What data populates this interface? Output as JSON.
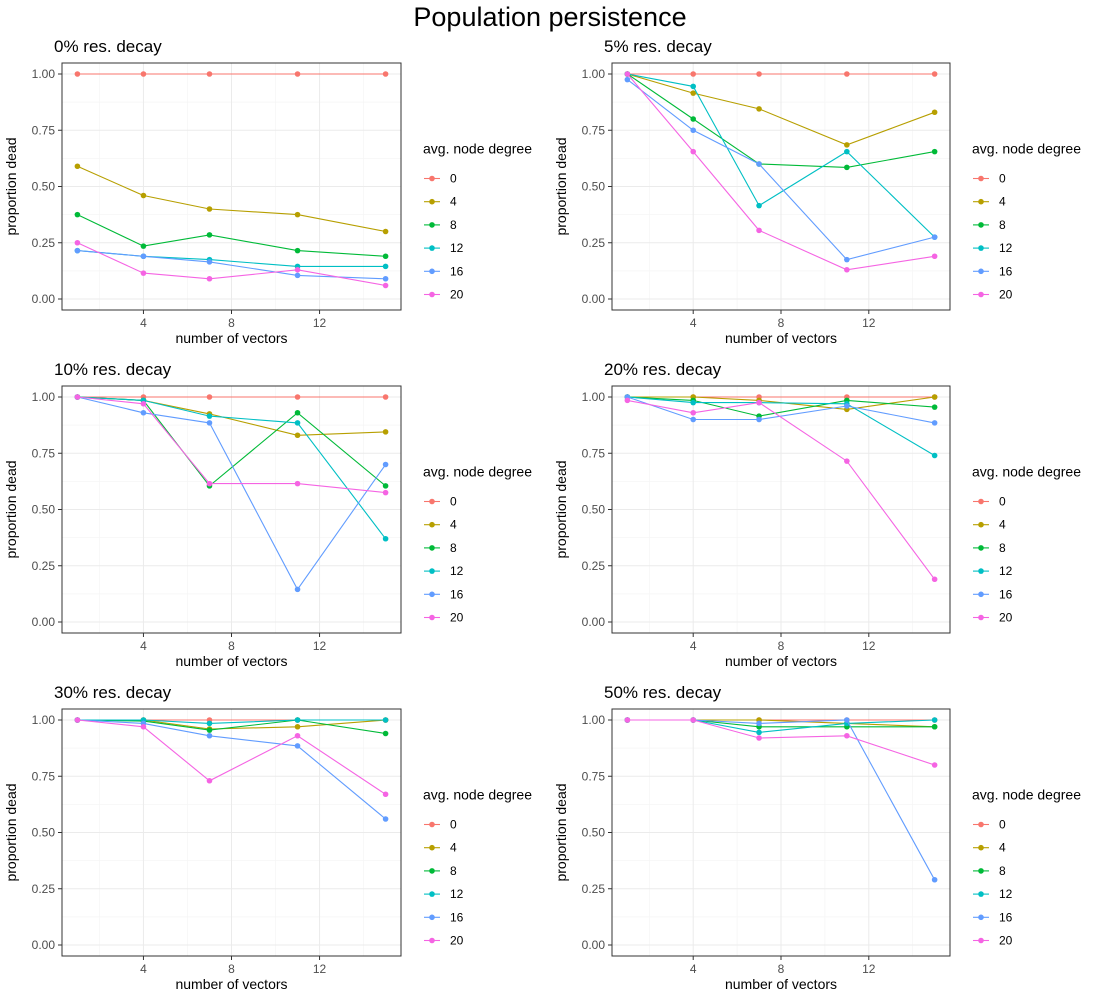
{
  "title": "Population persistence",
  "legend": {
    "title": "avg. node degree",
    "levels": [
      "0",
      "4",
      "8",
      "12",
      "16",
      "20"
    ],
    "colors": [
      "#F8766D",
      "#B79F00",
      "#00BA38",
      "#00BFC4",
      "#619CFF",
      "#F564E3"
    ]
  },
  "chart_data": [
    {
      "type": "line",
      "title": "0% res. decay",
      "xlabel": "number of vectors",
      "ylabel": "proportion dead",
      "x": [
        1,
        4,
        7,
        11,
        15
      ],
      "xticks": [
        "4",
        "8",
        "12"
      ],
      "xtick_values": [
        4,
        8,
        12
      ],
      "yticks": [
        "0.00",
        "0.25",
        "0.50",
        "0.75",
        "1.00"
      ],
      "ylim": [
        0,
        1
      ],
      "grid": true,
      "series": [
        {
          "name": "0",
          "values": [
            1.0,
            1.0,
            1.0,
            1.0,
            1.0
          ]
        },
        {
          "name": "4",
          "values": [
            0.59,
            0.46,
            0.4,
            0.375,
            0.3
          ]
        },
        {
          "name": "8",
          "values": [
            0.375,
            0.235,
            0.285,
            0.215,
            0.19
          ]
        },
        {
          "name": "12",
          "values": [
            0.215,
            0.19,
            0.175,
            0.145,
            0.145
          ]
        },
        {
          "name": "16",
          "values": [
            0.215,
            0.19,
            0.165,
            0.105,
            0.09
          ]
        },
        {
          "name": "20",
          "values": [
            0.25,
            0.115,
            0.09,
            0.13,
            0.06
          ]
        }
      ]
    },
    {
      "type": "line",
      "title": "5% res. decay",
      "xlabel": "number of vectors",
      "ylabel": "proportion dead",
      "x": [
        1,
        4,
        7,
        11,
        15
      ],
      "xticks": [
        "4",
        "8",
        "12"
      ],
      "xtick_values": [
        4,
        8,
        12
      ],
      "yticks": [
        "0.00",
        "0.25",
        "0.50",
        "0.75",
        "1.00"
      ],
      "ylim": [
        0,
        1
      ],
      "grid": true,
      "series": [
        {
          "name": "0",
          "values": [
            1.0,
            1.0,
            1.0,
            1.0,
            1.0
          ]
        },
        {
          "name": "4",
          "values": [
            1.0,
            0.915,
            0.845,
            0.685,
            0.83
          ]
        },
        {
          "name": "8",
          "values": [
            1.0,
            0.8,
            0.6,
            0.585,
            0.655
          ]
        },
        {
          "name": "12",
          "values": [
            1.0,
            0.945,
            0.415,
            0.655,
            0.275
          ]
        },
        {
          "name": "16",
          "values": [
            0.975,
            0.75,
            0.6,
            0.175,
            0.275
          ]
        },
        {
          "name": "20",
          "values": [
            1.0,
            0.655,
            0.305,
            0.13,
            0.19
          ]
        }
      ]
    },
    {
      "type": "line",
      "title": "10% res. decay",
      "xlabel": "number of vectors",
      "ylabel": "proportion dead",
      "x": [
        1,
        4,
        7,
        11,
        15
      ],
      "xticks": [
        "4",
        "8",
        "12"
      ],
      "xtick_values": [
        4,
        8,
        12
      ],
      "yticks": [
        "0.00",
        "0.25",
        "0.50",
        "0.75",
        "1.00"
      ],
      "ylim": [
        0,
        1
      ],
      "grid": true,
      "series": [
        {
          "name": "0",
          "values": [
            1.0,
            1.0,
            1.0,
            1.0,
            1.0
          ]
        },
        {
          "name": "4",
          "values": [
            1.0,
            0.985,
            0.925,
            0.83,
            0.845
          ]
        },
        {
          "name": "8",
          "values": [
            1.0,
            0.985,
            0.605,
            0.93,
            0.605
          ]
        },
        {
          "name": "12",
          "values": [
            1.0,
            0.985,
            0.915,
            0.885,
            0.37
          ]
        },
        {
          "name": "16",
          "values": [
            1.0,
            0.93,
            0.885,
            0.145,
            0.7
          ]
        },
        {
          "name": "20",
          "values": [
            1.0,
            0.97,
            0.615,
            0.615,
            0.575
          ]
        }
      ]
    },
    {
      "type": "line",
      "title": "20% res. decay",
      "xlabel": "number of vectors",
      "ylabel": "proportion dead",
      "x": [
        1,
        4,
        7,
        11,
        15
      ],
      "xticks": [
        "4",
        "8",
        "12"
      ],
      "xtick_values": [
        4,
        8,
        12
      ],
      "yticks": [
        "0.00",
        "0.25",
        "0.50",
        "0.75",
        "1.00"
      ],
      "ylim": [
        0,
        1
      ],
      "grid": true,
      "series": [
        {
          "name": "0",
          "values": [
            1.0,
            1.0,
            1.0,
            1.0,
            1.0
          ]
        },
        {
          "name": "4",
          "values": [
            1.0,
            1.0,
            0.985,
            0.945,
            1.0
          ]
        },
        {
          "name": "8",
          "values": [
            1.0,
            0.985,
            0.915,
            0.985,
            0.955
          ]
        },
        {
          "name": "12",
          "values": [
            1.0,
            0.975,
            0.975,
            0.97,
            0.74
          ]
        },
        {
          "name": "16",
          "values": [
            1.0,
            0.9,
            0.9,
            0.96,
            0.885
          ]
        },
        {
          "name": "20",
          "values": [
            0.985,
            0.93,
            0.975,
            0.715,
            0.19
          ]
        }
      ]
    },
    {
      "type": "line",
      "title": "30% res. decay",
      "xlabel": "number of vectors",
      "ylabel": "proportion dead",
      "x": [
        1,
        4,
        7,
        11,
        15
      ],
      "xticks": [
        "4",
        "8",
        "12"
      ],
      "xtick_values": [
        4,
        8,
        12
      ],
      "yticks": [
        "0.00",
        "0.25",
        "0.50",
        "0.75",
        "1.00"
      ],
      "ylim": [
        0,
        1
      ],
      "grid": true,
      "series": [
        {
          "name": "0",
          "values": [
            1.0,
            1.0,
            1.0,
            1.0,
            1.0
          ]
        },
        {
          "name": "4",
          "values": [
            1.0,
            1.0,
            0.96,
            0.97,
            1.0
          ]
        },
        {
          "name": "8",
          "values": [
            1.0,
            0.995,
            0.955,
            1.0,
            0.94
          ]
        },
        {
          "name": "12",
          "values": [
            1.0,
            1.0,
            0.985,
            1.0,
            1.0
          ]
        },
        {
          "name": "16",
          "values": [
            1.0,
            0.985,
            0.93,
            0.885,
            0.56
          ]
        },
        {
          "name": "20",
          "values": [
            1.0,
            0.97,
            0.73,
            0.93,
            0.67
          ]
        }
      ]
    },
    {
      "type": "line",
      "title": "50% res. decay",
      "xlabel": "number of vectors",
      "ylabel": "proportion dead",
      "x": [
        1,
        4,
        7,
        11,
        15
      ],
      "xticks": [
        "4",
        "8",
        "12"
      ],
      "xtick_values": [
        4,
        8,
        12
      ],
      "yticks": [
        "0.00",
        "0.25",
        "0.50",
        "0.75",
        "1.00"
      ],
      "ylim": [
        0,
        1
      ],
      "grid": true,
      "series": [
        {
          "name": "0",
          "values": [
            1.0,
            1.0,
            1.0,
            1.0,
            1.0
          ]
        },
        {
          "name": "4",
          "values": [
            1.0,
            1.0,
            1.0,
            0.985,
            0.97
          ]
        },
        {
          "name": "8",
          "values": [
            1.0,
            1.0,
            0.97,
            0.97,
            0.97
          ]
        },
        {
          "name": "12",
          "values": [
            1.0,
            1.0,
            0.945,
            0.985,
            1.0
          ]
        },
        {
          "name": "16",
          "values": [
            1.0,
            1.0,
            0.985,
            1.0,
            0.29
          ]
        },
        {
          "name": "20",
          "values": [
            1.0,
            1.0,
            0.92,
            0.93,
            0.8
          ]
        }
      ]
    }
  ]
}
